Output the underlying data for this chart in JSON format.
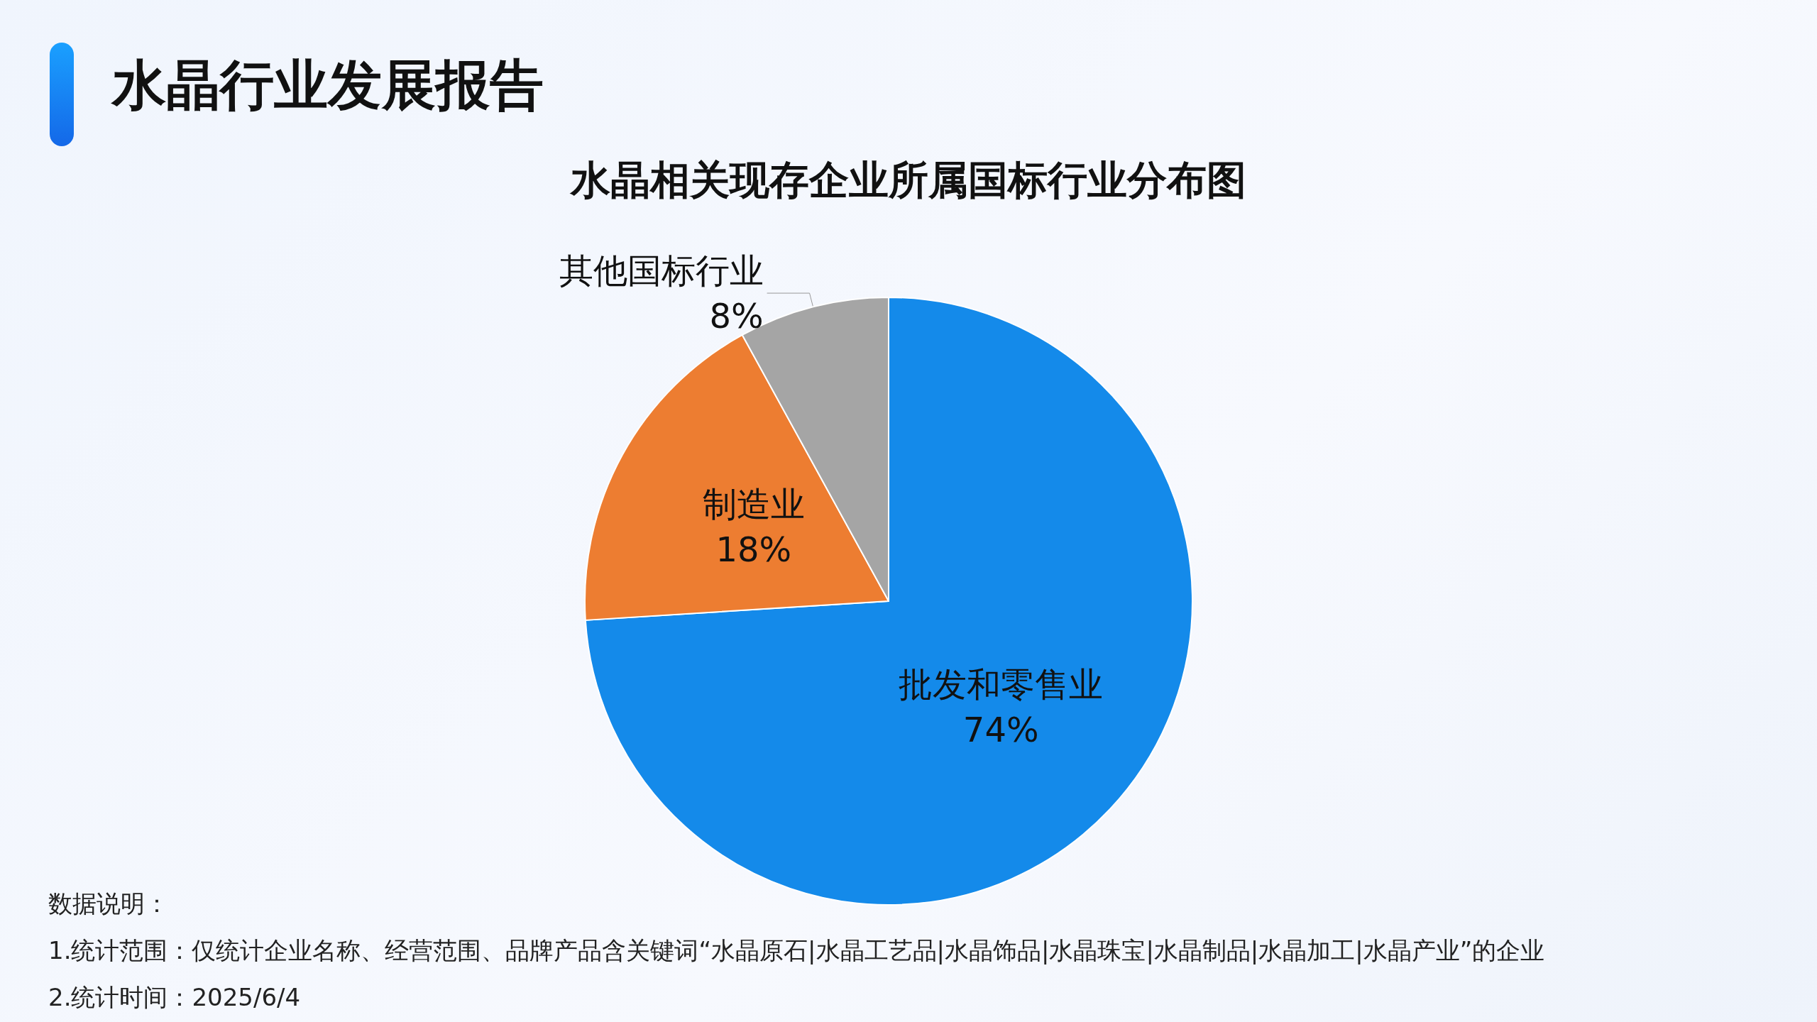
{
  "chart_data": {
    "type": "pie",
    "title": "水晶行业发展报告",
    "subtitle": "水晶相关现存企业所属国标行业分布图",
    "categories": [
      "批发和零售业",
      "制造业",
      "其他国标行业"
    ],
    "values": [
      74,
      18,
      8
    ],
    "value_labels": [
      "74%",
      "18%",
      "8%"
    ],
    "colors": [
      "#148aea",
      "#ed7d31",
      "#a5a5a5"
    ],
    "legend": false,
    "annotations": [
      "数据说明：",
      "1.统计范围：仅统计企业名称、经营范围、品牌产品含关键词“水晶原石|水晶工艺品|水晶饰品|水晶珠宝|水晶制品|水晶加工|水晶产业”的企业",
      "2.统计时间：2025/6/4"
    ]
  }
}
